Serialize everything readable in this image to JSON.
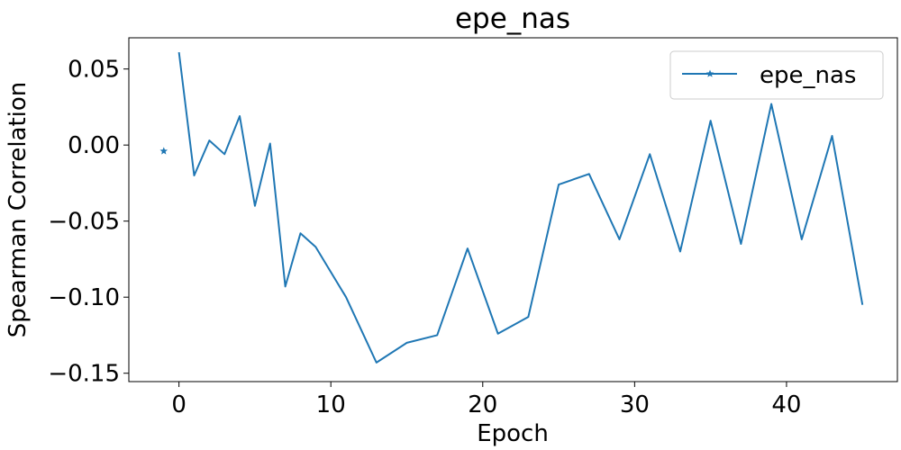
{
  "chart_data": {
    "type": "line",
    "title": "epe_nas",
    "xlabel": "Epoch",
    "ylabel": "Spearman Correlation",
    "xlim": [
      -3.3,
      47.3
    ],
    "ylim": [
      -0.1555,
      0.0705
    ],
    "xticks": [
      0,
      10,
      20,
      30,
      40
    ],
    "xtick_labels": [
      "0",
      "10",
      "20",
      "30",
      "40"
    ],
    "yticks": [
      0.05,
      0.0,
      -0.05,
      -0.1,
      -0.15
    ],
    "ytick_labels": [
      "0.05",
      "0.00",
      "−0.05",
      "−0.10",
      "−0.15"
    ],
    "grid": false,
    "legend_position": "top-right",
    "series": [
      {
        "name": "epe_nas",
        "color": "#1f77b4",
        "marker": "star",
        "marked_points": [
          {
            "x": -1,
            "y": -0.004
          }
        ],
        "x": [
          0,
          1,
          2,
          3,
          4,
          5,
          6,
          7,
          8,
          9,
          11,
          13,
          15,
          17,
          19,
          21,
          23,
          25,
          27,
          29,
          31,
          33,
          35,
          37,
          39,
          41,
          43,
          45
        ],
        "y": [
          0.061,
          -0.02,
          0.003,
          -0.006,
          0.019,
          -0.04,
          0.001,
          -0.093,
          -0.058,
          -0.067,
          -0.1,
          -0.143,
          -0.13,
          -0.125,
          -0.068,
          -0.124,
          -0.113,
          -0.026,
          -0.019,
          -0.062,
          -0.006,
          -0.07,
          0.016,
          -0.065,
          0.027,
          -0.062,
          0.006,
          -0.105
        ]
      }
    ]
  }
}
